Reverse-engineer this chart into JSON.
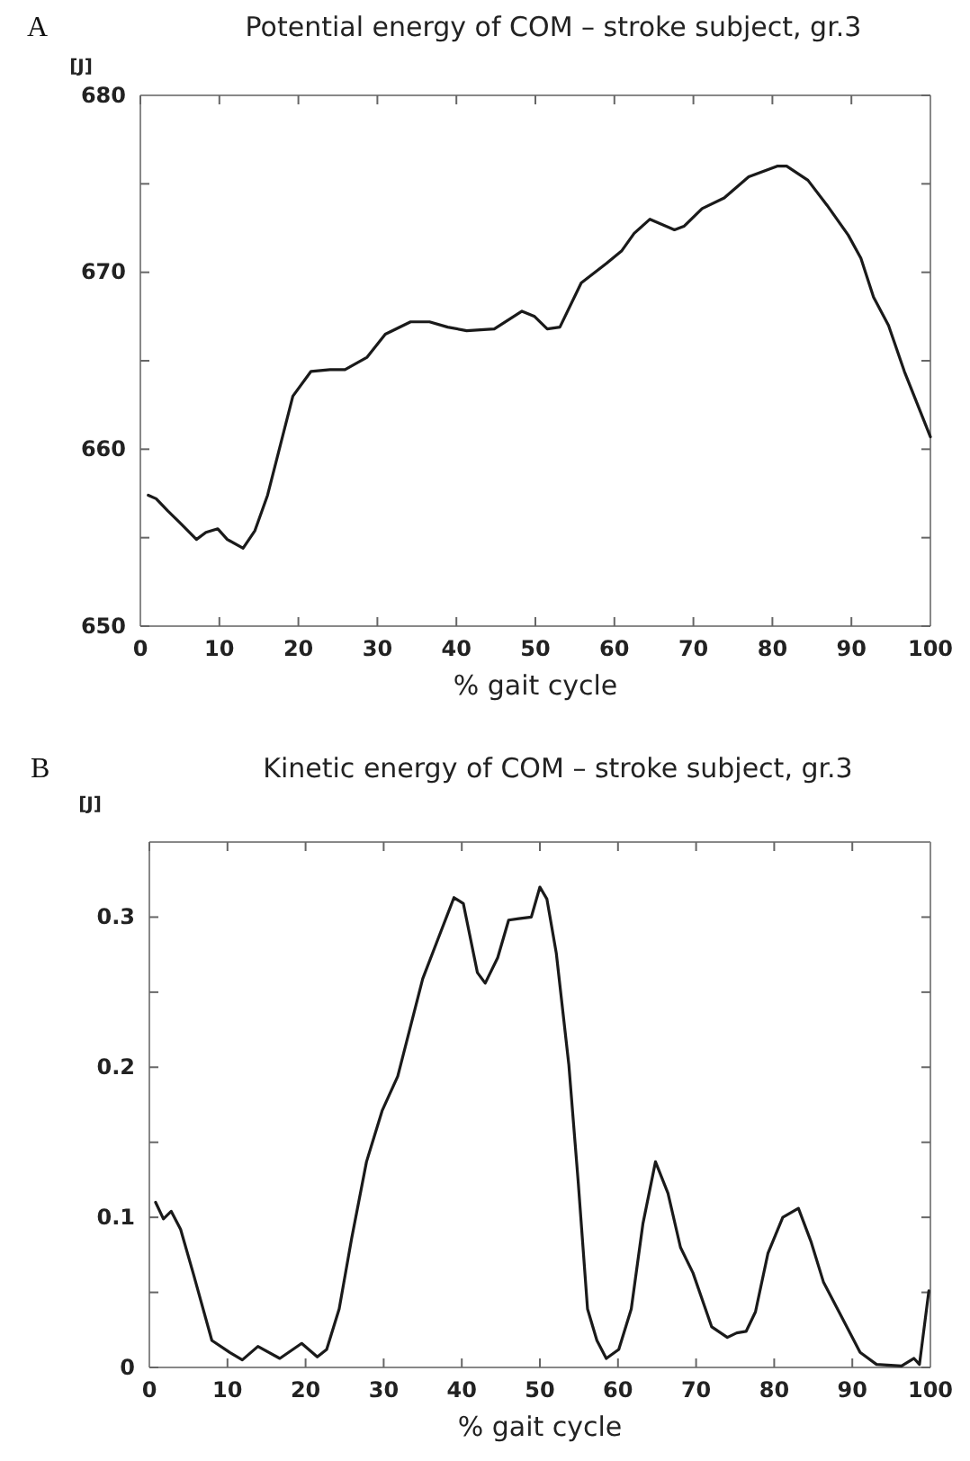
{
  "chart_data": [
    {
      "type": "line",
      "title": "Potential energy of COM – stroke subject, gr.3",
      "xlabel": "% gait cycle",
      "ylabel": "[J]",
      "annotations": [
        "A"
      ],
      "xlim": [
        0,
        100
      ],
      "xticks": [
        0,
        10,
        20,
        30,
        40,
        50,
        60,
        70,
        80,
        90,
        100
      ],
      "ylim": [
        650,
        680
      ],
      "yticks": [
        650,
        {
          "value": 655,
          "label": null
        },
        660,
        {
          "value": 665,
          "label": null
        },
        670,
        {
          "value": 675,
          "label": null
        },
        680
      ],
      "grid": false,
      "marker": "none",
      "line_style": "solid",
      "series": [
        {
          "color": "#1a1a1a",
          "x": [
            1,
            2,
            3.5,
            5.1,
            7.1,
            8.3,
            9.8,
            11,
            13,
            14.5,
            16.1,
            17.7,
            19.3,
            21.6,
            24,
            25.9,
            28.7,
            31,
            34.2,
            36.6,
            38.9,
            41.3,
            44.8,
            48.3,
            49.9,
            51.5,
            53.1,
            55.8,
            59,
            60.9,
            62.5,
            64.5,
            67.6,
            68.8,
            71.1,
            73.9,
            77,
            80.6,
            81.8,
            84.5,
            86.9,
            89.6,
            91.2,
            92.8,
            94.7,
            96.7,
            100
          ],
          "values": [
            657.4,
            657.2,
            656.5,
            655.8,
            654.9,
            655.3,
            655.5,
            654.9,
            654.4,
            655.4,
            657.4,
            660.2,
            663,
            664.4,
            664.5,
            664.5,
            665.2,
            666.5,
            667.2,
            667.2,
            666.9,
            666.7,
            666.8,
            667.8,
            667.5,
            666.8,
            666.9,
            669.4,
            670.5,
            671.2,
            672.2,
            673,
            672.4,
            672.6,
            673.6,
            674.2,
            675.4,
            676,
            676,
            675.2,
            673.8,
            672.1,
            670.8,
            668.6,
            667,
            664.4,
            660.7
          ]
        }
      ]
    },
    {
      "type": "line",
      "title": "Kinetic energy of COM – stroke subject, gr.3",
      "xlabel": "% gait cycle",
      "ylabel": "[J]",
      "annotations": [
        "B"
      ],
      "xlim": [
        0,
        100
      ],
      "xticks": [
        0,
        10,
        20,
        30,
        40,
        50,
        60,
        70,
        80,
        90,
        100
      ],
      "ylim": [
        0,
        0.35
      ],
      "yticks": [
        0,
        {
          "value": 0.05,
          "label": null
        },
        0.1,
        {
          "value": 0.15,
          "label": null
        },
        0.2,
        {
          "value": 0.25,
          "label": null
        },
        0.3
      ],
      "grid": false,
      "marker": "none",
      "line_style": "solid",
      "series": [
        {
          "color": "#1a1a1a",
          "x": [
            0.8,
            1.8,
            2.8,
            4,
            5.6,
            8,
            10.3,
            11.9,
            13.9,
            16.7,
            19.5,
            21.5,
            22.7,
            24.3,
            25.9,
            27.8,
            29.8,
            31.8,
            35,
            37,
            39,
            40.2,
            42,
            43,
            44.6,
            46,
            47.3,
            48.9,
            50,
            50.9,
            52.1,
            53.7,
            54.9,
            56.1,
            57.3,
            58.5,
            60.1,
            61.7,
            63.2,
            64.8,
            66.4,
            68,
            69.6,
            72,
            74,
            75.2,
            76.4,
            77.6,
            79.2,
            81.1,
            83.1,
            84.7,
            86.3,
            88.3,
            91,
            93.1,
            96.3,
            97.9,
            98.6,
            99.8
          ],
          "values": [
            0.11,
            0.099,
            0.104,
            0.092,
            0.063,
            0.018,
            0.01,
            0.005,
            0.014,
            0.006,
            0.016,
            0.007,
            0.012,
            0.039,
            0.086,
            0.137,
            0.171,
            0.194,
            0.259,
            0.286,
            0.313,
            0.309,
            0.263,
            0.256,
            0.273,
            0.298,
            0.299,
            0.3,
            0.32,
            0.312,
            0.276,
            0.202,
            0.124,
            0.039,
            0.018,
            0.006,
            0.012,
            0.039,
            0.096,
            0.137,
            0.116,
            0.08,
            0.063,
            0.027,
            0.02,
            0.023,
            0.024,
            0.037,
            0.076,
            0.1,
            0.106,
            0.084,
            0.057,
            0.037,
            0.01,
            0.002,
            0.001,
            0.006,
            0.002,
            0.051
          ]
        }
      ]
    }
  ]
}
